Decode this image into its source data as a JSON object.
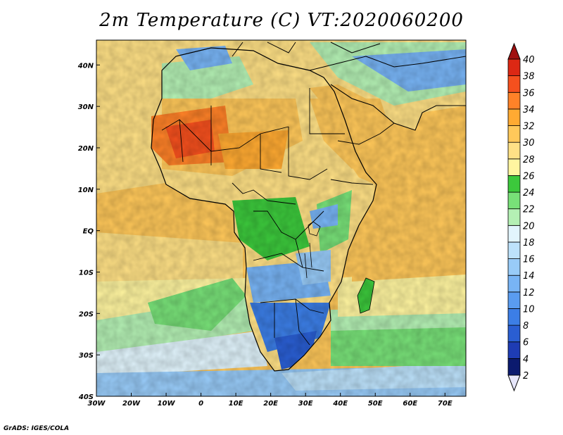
{
  "title": "2m Temperature (C) VT:2020060200",
  "credit": "GrADS: IGES/COLA",
  "map": {
    "lon_range": [
      -30,
      76
    ],
    "lat_range": [
      -40,
      46
    ],
    "lon_ticks": [
      {
        "v": -30,
        "label": "30W"
      },
      {
        "v": -20,
        "label": "20W"
      },
      {
        "v": -10,
        "label": "10W"
      },
      {
        "v": 0,
        "label": "0"
      },
      {
        "v": 10,
        "label": "10E"
      },
      {
        "v": 20,
        "label": "20E"
      },
      {
        "v": 30,
        "label": "30E"
      },
      {
        "v": 40,
        "label": "40E"
      },
      {
        "v": 50,
        "label": "50E"
      },
      {
        "v": 60,
        "label": "60E"
      },
      {
        "v": 70,
        "label": "70E"
      }
    ],
    "lat_ticks": [
      {
        "v": 40,
        "label": "40N"
      },
      {
        "v": 30,
        "label": "30N"
      },
      {
        "v": 20,
        "label": "20N"
      },
      {
        "v": 10,
        "label": "10N"
      },
      {
        "v": 0,
        "label": "EQ"
      },
      {
        "v": -10,
        "label": "10S"
      },
      {
        "v": -20,
        "label": "20S"
      },
      {
        "v": -30,
        "label": "30S"
      },
      {
        "v": -40,
        "label": "40S"
      }
    ]
  },
  "colorbar": {
    "levels": [
      {
        "value": "2",
        "color": "#0b1a6e"
      },
      {
        "value": "4",
        "color": "#1e3cb4"
      },
      {
        "value": "6",
        "color": "#2a5ed2"
      },
      {
        "value": "8",
        "color": "#3c7ee6"
      },
      {
        "value": "10",
        "color": "#5a9cf0"
      },
      {
        "value": "12",
        "color": "#78b4f5"
      },
      {
        "value": "14",
        "color": "#98cbf8"
      },
      {
        "value": "16",
        "color": "#bde2fb"
      },
      {
        "value": "18",
        "color": "#e2f5fd"
      },
      {
        "value": "20",
        "color": "#b4f0b4"
      },
      {
        "value": "22",
        "color": "#78e078"
      },
      {
        "value": "24",
        "color": "#3cc83c"
      },
      {
        "value": "26",
        "color": "#fff5a0"
      },
      {
        "value": "28",
        "color": "#ffe186"
      },
      {
        "value": "30",
        "color": "#ffc85a"
      },
      {
        "value": "32",
        "color": "#ffaa32"
      },
      {
        "value": "34",
        "color": "#ff8228"
      },
      {
        "value": "36",
        "color": "#f5501e"
      },
      {
        "value": "38",
        "color": "#dc2814"
      },
      {
        "value": "40",
        "color": "#b41414"
      }
    ],
    "under_color": "#e6e6fa",
    "over_color": "#a01010"
  }
}
